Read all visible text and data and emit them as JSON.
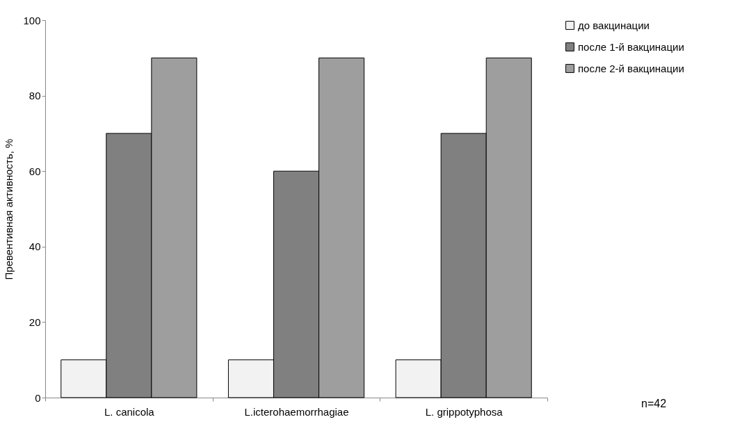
{
  "chart_data": {
    "type": "bar",
    "ylabel": "Превентивная активность, %",
    "categories": [
      "L. canicola",
      "L.icterohaemorrhagiae",
      "L. grippotyphosa"
    ],
    "series": [
      {
        "name": "до вакцинации",
        "color": "#f2f2f2",
        "values": [
          10,
          10,
          10
        ]
      },
      {
        "name": "после 1-й вакцинации",
        "color": "#808080",
        "values": [
          70,
          60,
          70
        ]
      },
      {
        "name": "после 2-й вакцинации",
        "color": "#9e9e9e",
        "values": [
          90,
          90,
          90
        ]
      }
    ],
    "ylim": [
      0,
      100
    ],
    "yticks": [
      0,
      20,
      40,
      60,
      80,
      100
    ],
    "grid": false,
    "legend": "right",
    "annotations": [
      "n=42"
    ]
  }
}
